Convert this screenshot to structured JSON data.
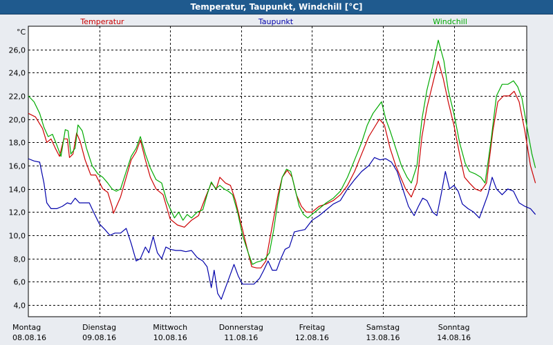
{
  "window": {
    "title": "Temperatur, Taupunkt, Windchill [°C]"
  },
  "chart_data": {
    "type": "line",
    "title": "Temperatur, Taupunkt, Windchill [°C]",
    "unit_label": "°C",
    "ylim": [
      3,
      28
    ],
    "yticks": [
      "4,0",
      "6,0",
      "8,0",
      "10,0",
      "12,0",
      "14,0",
      "16,0",
      "18,0",
      "20,0",
      "22,0",
      "24,0",
      "26,0"
    ],
    "ytick_values": [
      4,
      6,
      8,
      10,
      12,
      14,
      16,
      18,
      20,
      22,
      24,
      26
    ],
    "xlim": [
      0,
      7
    ],
    "days": [
      {
        "name": "Montag",
        "date": "08.08.16"
      },
      {
        "name": "Dienstag",
        "date": "09.08.16"
      },
      {
        "name": "Mittwoch",
        "date": "10.08.16"
      },
      {
        "name": "Donnerstag",
        "date": "11.08.16"
      },
      {
        "name": "Freitag",
        "date": "12.08.16"
      },
      {
        "name": "Samstag",
        "date": "13.08.16"
      },
      {
        "name": "Sonntag",
        "date": "14.08.16"
      }
    ],
    "grid": true,
    "series": [
      {
        "name": "Temperatur",
        "color": "#cc0000",
        "points": [
          [
            0.0,
            20.5
          ],
          [
            0.1,
            20.2
          ],
          [
            0.2,
            19.2
          ],
          [
            0.26,
            18.0
          ],
          [
            0.32,
            18.3
          ],
          [
            0.38,
            17.5
          ],
          [
            0.44,
            16.8
          ],
          [
            0.5,
            18.3
          ],
          [
            0.55,
            18.3
          ],
          [
            0.58,
            16.7
          ],
          [
            0.63,
            17.0
          ],
          [
            0.68,
            18.8
          ],
          [
            0.73,
            18.1
          ],
          [
            0.8,
            16.5
          ],
          [
            0.88,
            15.2
          ],
          [
            0.95,
            15.2
          ],
          [
            1.05,
            14.0
          ],
          [
            1.12,
            13.7
          ],
          [
            1.18,
            12.5
          ],
          [
            1.2,
            11.9
          ],
          [
            1.3,
            13.3
          ],
          [
            1.38,
            15.0
          ],
          [
            1.45,
            16.5
          ],
          [
            1.52,
            17.2
          ],
          [
            1.58,
            18.2
          ],
          [
            1.65,
            16.5
          ],
          [
            1.72,
            15.0
          ],
          [
            1.8,
            14.0
          ],
          [
            1.9,
            13.5
          ],
          [
            2.0,
            11.4
          ],
          [
            2.1,
            10.9
          ],
          [
            2.2,
            10.7
          ],
          [
            2.3,
            11.3
          ],
          [
            2.4,
            11.7
          ],
          [
            2.5,
            13.3
          ],
          [
            2.58,
            14.5
          ],
          [
            2.65,
            14.0
          ],
          [
            2.7,
            15.0
          ],
          [
            2.78,
            14.5
          ],
          [
            2.85,
            14.3
          ],
          [
            2.92,
            13.0
          ],
          [
            3.0,
            11.0
          ],
          [
            3.08,
            9.0
          ],
          [
            3.15,
            7.3
          ],
          [
            3.22,
            7.2
          ],
          [
            3.28,
            7.2
          ],
          [
            3.35,
            7.8
          ],
          [
            3.4,
            9.5
          ],
          [
            3.46,
            11.5
          ],
          [
            3.52,
            13.5
          ],
          [
            3.58,
            15.0
          ],
          [
            3.65,
            15.6
          ],
          [
            3.72,
            15.0
          ],
          [
            3.78,
            13.5
          ],
          [
            3.85,
            12.5
          ],
          [
            3.92,
            12.0
          ],
          [
            4.0,
            12.0
          ],
          [
            4.1,
            12.5
          ],
          [
            4.2,
            12.7
          ],
          [
            4.3,
            13.0
          ],
          [
            4.4,
            13.5
          ],
          [
            4.5,
            14.3
          ],
          [
            4.6,
            15.5
          ],
          [
            4.7,
            17.0
          ],
          [
            4.8,
            18.5
          ],
          [
            4.88,
            19.3
          ],
          [
            4.95,
            20.0
          ],
          [
            5.02,
            19.5
          ],
          [
            5.1,
            17.5
          ],
          [
            5.18,
            16.0
          ],
          [
            5.25,
            15.0
          ],
          [
            5.32,
            14.0
          ],
          [
            5.4,
            13.3
          ],
          [
            5.48,
            14.5
          ],
          [
            5.55,
            18.5
          ],
          [
            5.62,
            21.0
          ],
          [
            5.7,
            23.0
          ],
          [
            5.78,
            25.0
          ],
          [
            5.85,
            23.5
          ],
          [
            5.92,
            21.5
          ],
          [
            6.0,
            19.5
          ],
          [
            6.08,
            17.0
          ],
          [
            6.15,
            15.0
          ],
          [
            6.22,
            14.5
          ],
          [
            6.3,
            14.0
          ],
          [
            6.38,
            13.8
          ],
          [
            6.46,
            14.5
          ],
          [
            6.55,
            19.0
          ],
          [
            6.62,
            21.5
          ],
          [
            6.7,
            22.0
          ],
          [
            6.78,
            22.0
          ],
          [
            6.85,
            22.4
          ],
          [
            6.92,
            21.5
          ],
          [
            7.0,
            19.0
          ],
          [
            7.08,
            16.0
          ],
          [
            7.15,
            14.5
          ]
        ]
      },
      {
        "name": "Taupunkt",
        "color": "#0000aa",
        "points": [
          [
            0.0,
            16.6
          ],
          [
            0.08,
            16.4
          ],
          [
            0.16,
            16.3
          ],
          [
            0.22,
            14.5
          ],
          [
            0.26,
            12.8
          ],
          [
            0.32,
            12.3
          ],
          [
            0.4,
            12.3
          ],
          [
            0.48,
            12.5
          ],
          [
            0.55,
            12.8
          ],
          [
            0.6,
            12.7
          ],
          [
            0.66,
            13.2
          ],
          [
            0.72,
            12.8
          ],
          [
            0.8,
            12.8
          ],
          [
            0.86,
            12.8
          ],
          [
            0.92,
            12.0
          ],
          [
            1.0,
            11.0
          ],
          [
            1.08,
            10.5
          ],
          [
            1.15,
            10.0
          ],
          [
            1.22,
            10.2
          ],
          [
            1.3,
            10.2
          ],
          [
            1.38,
            10.6
          ],
          [
            1.45,
            9.3
          ],
          [
            1.52,
            7.8
          ],
          [
            1.58,
            8.0
          ],
          [
            1.65,
            9.0
          ],
          [
            1.7,
            8.5
          ],
          [
            1.76,
            9.9
          ],
          [
            1.82,
            8.5
          ],
          [
            1.88,
            8.0
          ],
          [
            1.94,
            9.0
          ],
          [
            2.0,
            8.8
          ],
          [
            2.08,
            8.7
          ],
          [
            2.15,
            8.7
          ],
          [
            2.22,
            8.6
          ],
          [
            2.3,
            8.7
          ],
          [
            2.38,
            8.1
          ],
          [
            2.46,
            7.8
          ],
          [
            2.52,
            7.3
          ],
          [
            2.58,
            5.5
          ],
          [
            2.62,
            7.0
          ],
          [
            2.67,
            5.0
          ],
          [
            2.72,
            4.5
          ],
          [
            2.78,
            5.5
          ],
          [
            2.84,
            6.5
          ],
          [
            2.9,
            7.5
          ],
          [
            2.96,
            6.5
          ],
          [
            3.02,
            5.8
          ],
          [
            3.1,
            5.8
          ],
          [
            3.18,
            5.8
          ],
          [
            3.26,
            6.3
          ],
          [
            3.32,
            7.0
          ],
          [
            3.38,
            7.8
          ],
          [
            3.44,
            7.0
          ],
          [
            3.5,
            7.0
          ],
          [
            3.56,
            8.0
          ],
          [
            3.62,
            8.8
          ],
          [
            3.68,
            9.0
          ],
          [
            3.75,
            10.3
          ],
          [
            3.82,
            10.4
          ],
          [
            3.9,
            10.5
          ],
          [
            4.0,
            11.3
          ],
          [
            4.1,
            11.7
          ],
          [
            4.2,
            12.2
          ],
          [
            4.3,
            12.7
          ],
          [
            4.4,
            13.0
          ],
          [
            4.5,
            14.0
          ],
          [
            4.6,
            14.8
          ],
          [
            4.7,
            15.5
          ],
          [
            4.8,
            16.0
          ],
          [
            4.88,
            16.7
          ],
          [
            4.96,
            16.5
          ],
          [
            5.04,
            16.6
          ],
          [
            5.12,
            16.3
          ],
          [
            5.2,
            15.5
          ],
          [
            5.28,
            14.0
          ],
          [
            5.36,
            12.5
          ],
          [
            5.44,
            11.7
          ],
          [
            5.5,
            12.5
          ],
          [
            5.56,
            13.2
          ],
          [
            5.62,
            13.0
          ],
          [
            5.7,
            12.0
          ],
          [
            5.76,
            11.7
          ],
          [
            5.82,
            13.5
          ],
          [
            5.88,
            15.5
          ],
          [
            5.94,
            14.0
          ],
          [
            6.0,
            14.3
          ],
          [
            6.06,
            13.8
          ],
          [
            6.12,
            12.7
          ],
          [
            6.2,
            12.3
          ],
          [
            6.28,
            12.0
          ],
          [
            6.36,
            11.5
          ],
          [
            6.42,
            12.5
          ],
          [
            6.48,
            13.5
          ],
          [
            6.54,
            15.0
          ],
          [
            6.6,
            14.0
          ],
          [
            6.68,
            13.5
          ],
          [
            6.76,
            14.0
          ],
          [
            6.84,
            13.8
          ],
          [
            6.92,
            12.8
          ],
          [
            7.0,
            12.5
          ],
          [
            7.08,
            12.3
          ],
          [
            7.15,
            11.8
          ]
        ]
      },
      {
        "name": "Windchill",
        "color": "#00aa00",
        "points": [
          [
            0.0,
            22.0
          ],
          [
            0.08,
            21.5
          ],
          [
            0.16,
            20.5
          ],
          [
            0.22,
            19.3
          ],
          [
            0.28,
            18.5
          ],
          [
            0.34,
            18.7
          ],
          [
            0.4,
            17.8
          ],
          [
            0.46,
            16.8
          ],
          [
            0.52,
            19.1
          ],
          [
            0.56,
            19.0
          ],
          [
            0.6,
            17.0
          ],
          [
            0.66,
            17.5
          ],
          [
            0.7,
            19.5
          ],
          [
            0.76,
            19.0
          ],
          [
            0.82,
            17.5
          ],
          [
            0.9,
            16.0
          ],
          [
            0.98,
            15.3
          ],
          [
            1.05,
            15.0
          ],
          [
            1.12,
            14.5
          ],
          [
            1.18,
            14.0
          ],
          [
            1.24,
            13.8
          ],
          [
            1.3,
            14.0
          ],
          [
            1.38,
            15.5
          ],
          [
            1.45,
            16.8
          ],
          [
            1.52,
            17.5
          ],
          [
            1.58,
            18.5
          ],
          [
            1.65,
            17.0
          ],
          [
            1.72,
            15.8
          ],
          [
            1.8,
            14.8
          ],
          [
            1.88,
            14.5
          ],
          [
            1.95,
            13.0
          ],
          [
            2.0,
            12.3
          ],
          [
            2.06,
            11.5
          ],
          [
            2.12,
            12.0
          ],
          [
            2.18,
            11.3
          ],
          [
            2.24,
            11.8
          ],
          [
            2.3,
            11.5
          ],
          [
            2.38,
            12.0
          ],
          [
            2.46,
            12.2
          ],
          [
            2.52,
            13.5
          ],
          [
            2.58,
            14.6
          ],
          [
            2.64,
            14.0
          ],
          [
            2.7,
            14.3
          ],
          [
            2.76,
            14.0
          ],
          [
            2.82,
            13.8
          ],
          [
            2.88,
            13.5
          ],
          [
            2.95,
            12.0
          ],
          [
            3.02,
            10.0
          ],
          [
            3.1,
            8.5
          ],
          [
            3.16,
            7.5
          ],
          [
            3.22,
            7.7
          ],
          [
            3.28,
            7.8
          ],
          [
            3.34,
            8.0
          ],
          [
            3.4,
            8.5
          ],
          [
            3.46,
            10.5
          ],
          [
            3.52,
            13.0
          ],
          [
            3.58,
            15.0
          ],
          [
            3.64,
            15.7
          ],
          [
            3.7,
            15.5
          ],
          [
            3.76,
            14.0
          ],
          [
            3.82,
            12.5
          ],
          [
            3.88,
            11.8
          ],
          [
            3.94,
            11.5
          ],
          [
            4.0,
            11.8
          ],
          [
            4.1,
            12.3
          ],
          [
            4.2,
            12.8
          ],
          [
            4.3,
            13.2
          ],
          [
            4.4,
            13.8
          ],
          [
            4.5,
            15.0
          ],
          [
            4.6,
            16.5
          ],
          [
            4.7,
            18.0
          ],
          [
            4.78,
            19.5
          ],
          [
            4.86,
            20.5
          ],
          [
            4.92,
            21.0
          ],
          [
            4.98,
            21.5
          ],
          [
            5.04,
            20.0
          ],
          [
            5.1,
            19.0
          ],
          [
            5.18,
            17.5
          ],
          [
            5.26,
            16.0
          ],
          [
            5.34,
            15.0
          ],
          [
            5.4,
            14.5
          ],
          [
            5.48,
            16.0
          ],
          [
            5.55,
            20.0
          ],
          [
            5.62,
            22.5
          ],
          [
            5.7,
            24.5
          ],
          [
            5.78,
            26.8
          ],
          [
            5.86,
            25.0
          ],
          [
            5.92,
            22.5
          ],
          [
            6.0,
            20.5
          ],
          [
            6.08,
            18.0
          ],
          [
            6.16,
            16.2
          ],
          [
            6.22,
            15.5
          ],
          [
            6.3,
            15.3
          ],
          [
            6.38,
            15.0
          ],
          [
            6.44,
            14.5
          ],
          [
            6.52,
            18.0
          ],
          [
            6.6,
            22.0
          ],
          [
            6.68,
            23.0
          ],
          [
            6.76,
            23.0
          ],
          [
            6.84,
            23.3
          ],
          [
            6.9,
            22.8
          ],
          [
            6.96,
            21.8
          ],
          [
            7.04,
            19.0
          ],
          [
            7.1,
            17.0
          ],
          [
            7.15,
            15.8
          ]
        ]
      }
    ]
  }
}
